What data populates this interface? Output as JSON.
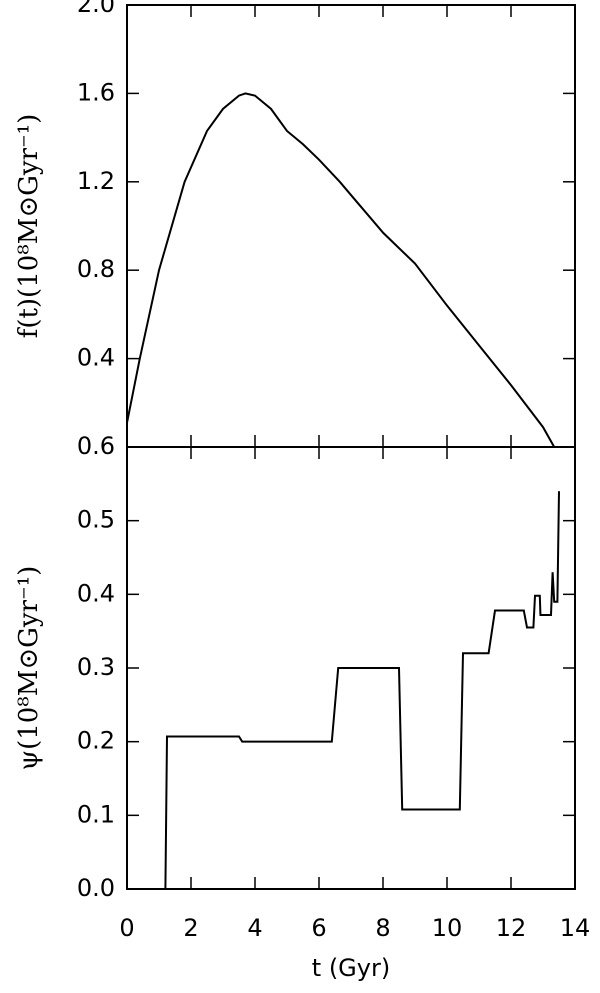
{
  "chart_data": [
    {
      "type": "line",
      "y_label": "f(t)(10⁸M⊙Gyr⁻¹)",
      "x": [
        0,
        0.4,
        1,
        1.8,
        2.5,
        3,
        3.5,
        3.7,
        4,
        4.5,
        5,
        5.5,
        6,
        6.65,
        7,
        8,
        9,
        10,
        11,
        12,
        13,
        13.35
      ],
      "values": [
        0.11,
        0.4,
        0.8,
        1.2,
        1.43,
        1.53,
        1.59,
        1.6,
        1.59,
        1.53,
        1.43,
        1.37,
        1.3,
        1.2,
        1.14,
        0.97,
        0.83,
        0.64,
        0.46,
        0.28,
        0.09,
        0
      ],
      "color": "#000000",
      "xlim": [
        0,
        14
      ],
      "ylim": [
        0,
        2
      ],
      "yticks": [
        0.4,
        0.8,
        1.2,
        1.6,
        {
          "value": 2,
          "label": "2.0"
        }
      ]
    },
    {
      "type": "line",
      "y_label": "ψ(10⁸M⊙Gyr⁻¹)",
      "x_label": "t (Gyr)",
      "x": [
        0,
        1.2,
        1.25,
        3.5,
        3.6,
        6.4,
        6.6,
        8.5,
        8.6,
        10.4,
        10.5,
        11.3,
        11.5,
        12.4,
        12.5,
        12.7,
        12.75,
        12.9,
        12.92,
        13.25,
        13.3,
        13.35,
        13.45,
        13.5
      ],
      "values": [
        0,
        0,
        0.207,
        0.207,
        0.2,
        0.2,
        0.3,
        0.3,
        0.108,
        0.108,
        0.32,
        0.32,
        0.378,
        0.378,
        0.355,
        0.355,
        0.398,
        0.398,
        0.372,
        0.372,
        0.43,
        0.39,
        0.39,
        0.54
      ],
      "color": "#000000",
      "xlim": [
        0,
        14
      ],
      "xticks": [
        0,
        2,
        4,
        6,
        8,
        10,
        12,
        14
      ],
      "ylim": [
        0,
        0.6
      ],
      "yticks": [
        {
          "value": 0,
          "label": "0.0"
        },
        0.1,
        0.2,
        0.3,
        0.4,
        0.5,
        0.6
      ]
    }
  ]
}
